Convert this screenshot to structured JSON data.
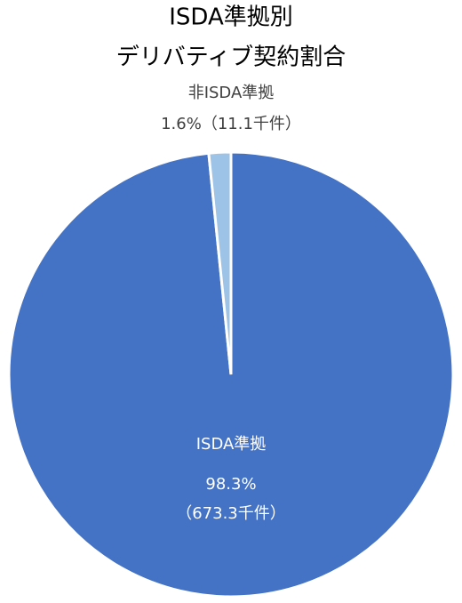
{
  "chart_data": {
    "type": "pie",
    "title": [
      "ISDA準拠別",
      "デリバティブ契約割合"
    ],
    "categories": [
      "ISDA準拠",
      "非ISDA準拠"
    ],
    "values": [
      98.3,
      1.6
    ],
    "value_labels": [
      "98.3%",
      "1.6%"
    ],
    "counts": [
      673.3,
      11.1
    ],
    "count_labels": [
      "（673.3千件）",
      "（11.1千件）"
    ],
    "colors": [
      "#4472c4",
      "#9dc3e6"
    ]
  }
}
